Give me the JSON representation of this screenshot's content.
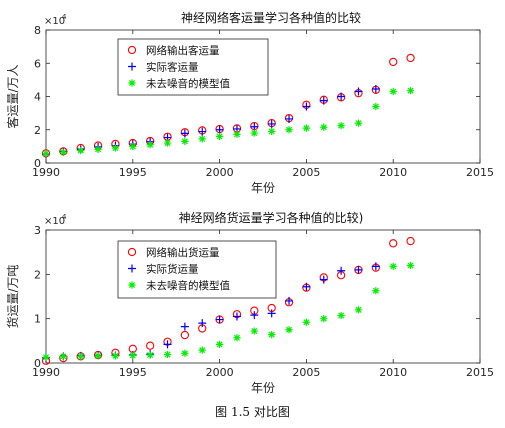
{
  "caption": "图 1.5 对比图",
  "chart_data": [
    {
      "type": "scatter",
      "title": "神经网络客运量学习各种值的比较",
      "xlabel": "年份",
      "ylabel": "客运量/万人",
      "y_exponent_label": "×10",
      "y_exponent": "4",
      "xlim": [
        1990,
        2015
      ],
      "ylim": [
        0,
        80000
      ],
      "xticks": [
        1990,
        1995,
        2000,
        2005,
        2010,
        2015
      ],
      "yticks": [
        0,
        20000,
        40000,
        60000,
        80000
      ],
      "ytick_labels": [
        "0",
        "2",
        "4",
        "6",
        "8"
      ],
      "legend_position": "upper-left",
      "series": [
        {
          "name": "网络输出客运量",
          "marker": "circle",
          "color": "#ff0000",
          "x": [
            1990,
            1991,
            1992,
            1993,
            1994,
            1995,
            1996,
            1997,
            1998,
            1999,
            2000,
            2001,
            2002,
            2003,
            2004,
            2005,
            2006,
            2007,
            2008,
            2009,
            2010,
            2011
          ],
          "values": [
            5800,
            7000,
            9000,
            10500,
            11500,
            12000,
            13200,
            15800,
            18500,
            19600,
            20400,
            20800,
            22200,
            24000,
            27000,
            35000,
            38000,
            39500,
            42000,
            44000,
            60800,
            63200
          ]
        },
        {
          "name": "实际客运量",
          "marker": "plus",
          "color": "#0000ff",
          "x": [
            1990,
            1991,
            1992,
            1993,
            1994,
            1995,
            1996,
            1997,
            1998,
            1999,
            2000,
            2001,
            2002,
            2003,
            2004,
            2005,
            2006,
            2007,
            2008,
            2009
          ],
          "values": [
            5400,
            6800,
            8300,
            9700,
            10500,
            11400,
            12800,
            15300,
            17800,
            18900,
            20000,
            20500,
            21800,
            23500,
            26500,
            34000,
            37500,
            40000,
            43000,
            44500
          ]
        },
        {
          "name": "未去噪音的模型值",
          "marker": "star",
          "color": "#00ee00",
          "x": [
            1990,
            1991,
            1992,
            1993,
            1994,
            1995,
            1996,
            1997,
            1998,
            1999,
            2000,
            2001,
            2002,
            2003,
            2004,
            2005,
            2006,
            2007,
            2008,
            2009,
            2010,
            2011
          ],
          "values": [
            5600,
            6500,
            7500,
            8200,
            9000,
            9900,
            11000,
            12000,
            13000,
            14500,
            16000,
            17200,
            18000,
            19000,
            20000,
            21000,
            21500,
            22500,
            24000,
            34000,
            43000,
            43500
          ]
        }
      ]
    },
    {
      "type": "scatter",
      "title": "神经网络货运量学习各种值的比较)",
      "xlabel": "年份",
      "ylabel": "货运量/万吨",
      "y_exponent_label": "×10",
      "y_exponent": "4",
      "xlim": [
        1990,
        2015
      ],
      "ylim": [
        0,
        30000
      ],
      "xticks": [
        1990,
        1995,
        2000,
        2005,
        2010,
        2015
      ],
      "yticks": [
        0,
        10000,
        20000,
        30000
      ],
      "ytick_labels": [
        "0",
        "1",
        "2",
        "3"
      ],
      "legend_position": "upper-left",
      "series": [
        {
          "name": "网络输出货运量",
          "marker": "circle",
          "color": "#ff0000",
          "x": [
            1990,
            1991,
            1992,
            1993,
            1994,
            1995,
            1996,
            1997,
            1998,
            1999,
            2000,
            2001,
            2002,
            2003,
            2004,
            2005,
            2006,
            2007,
            2008,
            2009,
            2010,
            2011
          ],
          "values": [
            500,
            1100,
            1500,
            1800,
            2300,
            3200,
            3900,
            4800,
            6300,
            7800,
            9800,
            11000,
            11800,
            12400,
            13700,
            17000,
            19300,
            19800,
            21000,
            21500,
            27000,
            27500
          ]
        },
        {
          "name": "实际货运量",
          "marker": "plus",
          "color": "#0000ff",
          "x": [
            1990,
            1991,
            1992,
            1993,
            1994,
            1995,
            1996,
            1997,
            1998,
            1999,
            2000,
            2001,
            2002,
            2003,
            2004,
            2005,
            2006,
            2007,
            2008,
            2009
          ],
          "values": [
            1200,
            1500,
            1600,
            1700,
            1700,
            1800,
            2000,
            4200,
            8200,
            9000,
            9800,
            10500,
            10800,
            11200,
            14000,
            17200,
            18800,
            20800,
            21000,
            21800
          ]
        },
        {
          "name": "未去噪音的模型值",
          "marker": "star",
          "color": "#00ee00",
          "x": [
            1990,
            1991,
            1992,
            1993,
            1994,
            1995,
            1996,
            1997,
            1998,
            1999,
            2000,
            2001,
            2002,
            2003,
            2004,
            2005,
            2006,
            2007,
            2008,
            2009,
            2010,
            2011
          ],
          "values": [
            1300,
            1500,
            1500,
            1600,
            1600,
            1700,
            1800,
            1900,
            2200,
            2900,
            4200,
            5700,
            7200,
            6400,
            7500,
            9200,
            10000,
            10700,
            12000,
            16300,
            21800,
            22000
          ]
        }
      ]
    }
  ]
}
